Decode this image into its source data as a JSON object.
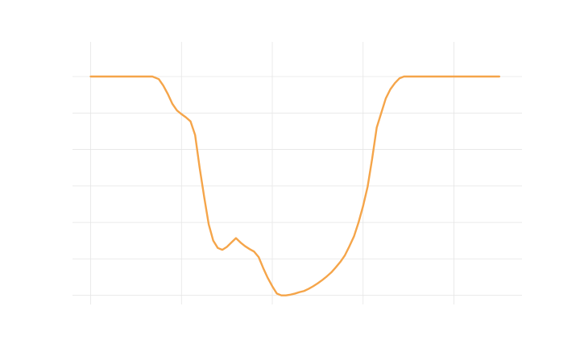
{
  "chart_data": {
    "type": "line",
    "title": "",
    "xlabel": "",
    "ylabel": "",
    "grid": true,
    "legend": "none",
    "xlim": [
      -0.2,
      4.75
    ],
    "ylim": [
      -0.25,
      6.95
    ],
    "x_gridlines": [
      0,
      1,
      2,
      3,
      4
    ],
    "y_gridlines": [
      0,
      1,
      2,
      3,
      4,
      5,
      6
    ],
    "series": [
      {
        "color": "#f5a54a",
        "x": [
          0.0,
          0.2,
          0.4,
          0.6,
          0.68,
          0.75,
          0.8,
          0.85,
          0.9,
          0.95,
          1.0,
          1.05,
          1.1,
          1.15,
          1.2,
          1.25,
          1.3,
          1.35,
          1.4,
          1.45,
          1.5,
          1.55,
          1.6,
          1.65,
          1.7,
          1.75,
          1.8,
          1.85,
          1.9,
          1.95,
          2.0,
          2.05,
          2.1,
          2.15,
          2.2,
          2.25,
          2.3,
          2.35,
          2.4,
          2.45,
          2.5,
          2.55,
          2.6,
          2.65,
          2.7,
          2.75,
          2.8,
          2.85,
          2.9,
          2.95,
          3.0,
          3.05,
          3.1,
          3.15,
          3.2,
          3.25,
          3.3,
          3.35,
          3.4,
          3.45,
          3.5,
          3.55,
          3.6,
          3.65,
          3.7,
          3.75,
          3.8,
          3.85,
          3.9,
          3.95,
          4.0,
          4.2,
          4.5
        ],
        "y": [
          6.0,
          6.0,
          6.0,
          6.0,
          6.0,
          5.93,
          5.75,
          5.52,
          5.25,
          5.07,
          4.97,
          4.88,
          4.77,
          4.4,
          3.5,
          2.7,
          1.95,
          1.5,
          1.3,
          1.25,
          1.33,
          1.45,
          1.57,
          1.45,
          1.35,
          1.27,
          1.2,
          1.05,
          0.75,
          0.48,
          0.25,
          0.05,
          0.0,
          0.0,
          0.02,
          0.05,
          0.09,
          0.12,
          0.18,
          0.25,
          0.33,
          0.42,
          0.52,
          0.63,
          0.77,
          0.92,
          1.1,
          1.35,
          1.62,
          2.0,
          2.45,
          2.98,
          3.75,
          4.6,
          5.0,
          5.4,
          5.65,
          5.82,
          5.95,
          6.0,
          6.0,
          6.0,
          6.0,
          6.0,
          6.0,
          6.0,
          6.0,
          6.0,
          6.0,
          6.0,
          6.0,
          6.0,
          6.0
        ]
      }
    ]
  }
}
